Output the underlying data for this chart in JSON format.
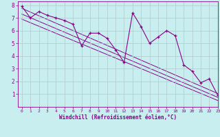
{
  "x_data": [
    0,
    1,
    2,
    3,
    4,
    5,
    6,
    7,
    8,
    9,
    10,
    11,
    12,
    13,
    14,
    15,
    16,
    17,
    18,
    19,
    20,
    21,
    22,
    23
  ],
  "y_data": [
    7.9,
    7.0,
    7.5,
    7.2,
    7.0,
    6.8,
    6.5,
    4.8,
    5.8,
    5.8,
    5.4,
    4.5,
    3.5,
    7.4,
    6.3,
    5.0,
    5.5,
    6.0,
    5.6,
    3.3,
    2.8,
    1.9,
    2.2,
    0.9
  ],
  "line_color": "#880088",
  "bg_color": "#c8eef0",
  "grid_color": "#b0c8cc",
  "xlabel": "Windchill (Refroidissement éolien,°C)",
  "xlim": [
    -0.5,
    23
  ],
  "ylim": [
    0,
    8.3
  ],
  "xticks": [
    0,
    1,
    2,
    3,
    4,
    5,
    6,
    7,
    8,
    9,
    10,
    11,
    12,
    13,
    14,
    15,
    16,
    17,
    18,
    19,
    20,
    21,
    22,
    23
  ],
  "yticks": [
    1,
    2,
    3,
    4,
    5,
    6,
    7,
    8
  ],
  "trend1_x": [
    0,
    23
  ],
  "trend1_y": [
    7.75,
    1.05
  ],
  "trend2_x": [
    0,
    23
  ],
  "trend2_y": [
    7.3,
    0.75
  ],
  "trend3_x": [
    0,
    23
  ],
  "trend3_y": [
    6.9,
    0.5
  ]
}
